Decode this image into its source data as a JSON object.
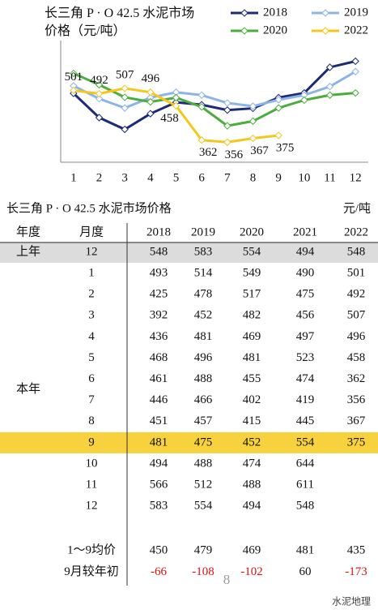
{
  "chart_data": {
    "type": "line",
    "title": "长三角 P · O 42.5 水泥市场价格（元/吨）",
    "categories": [
      "1",
      "2",
      "3",
      "4",
      "5",
      "6",
      "7",
      "8",
      "9",
      "10",
      "11",
      "12"
    ],
    "ylim": [
      300,
      600
    ],
    "series": [
      {
        "name": "2018",
        "color": "#1c2a78",
        "values": [
          493,
          425,
          392,
          436,
          468,
          461,
          446,
          451,
          481,
          494,
          566,
          583
        ]
      },
      {
        "name": "2019",
        "color": "#8db4e6",
        "values": [
          514,
          478,
          452,
          481,
          496,
          488,
          466,
          457,
          475,
          488,
          512,
          554
        ]
      },
      {
        "name": "2020",
        "color": "#4aad3c",
        "values": [
          549,
          517,
          482,
          469,
          481,
          455,
          402,
          415,
          452,
          474,
          488,
          494
        ]
      },
      {
        "name": "2022",
        "color": "#f5c61c",
        "values": [
          501,
          492,
          507,
          496,
          458,
          362,
          356,
          367,
          375,
          null,
          null,
          null
        ],
        "data_labels": true
      }
    ]
  },
  "table": {
    "title": "长三角 P · O 42.5 水泥市场价格",
    "unit": "元/吨",
    "header": [
      "年度",
      "月度",
      "2018",
      "2019",
      "2020",
      "2021",
      "2022"
    ],
    "sections": [
      {
        "label": "上年",
        "style": "#dcdcdc",
        "rows": [
          [
            "12",
            "548",
            "583",
            "554",
            "494",
            "548"
          ]
        ]
      },
      {
        "label": "本年",
        "highlight_row": 8,
        "highlight_color": "#f7d23e",
        "rows": [
          [
            "1",
            "493",
            "514",
            "549",
            "490",
            "501"
          ],
          [
            "2",
            "425",
            "478",
            "517",
            "475",
            "492"
          ],
          [
            "3",
            "392",
            "452",
            "482",
            "456",
            "507"
          ],
          [
            "4",
            "436",
            "481",
            "469",
            "497",
            "496"
          ],
          [
            "5",
            "468",
            "496",
            "481",
            "523",
            "458"
          ],
          [
            "6",
            "461",
            "488",
            "455",
            "474",
            "362"
          ],
          [
            "7",
            "446",
            "466",
            "402",
            "419",
            "356"
          ],
          [
            "8",
            "451",
            "457",
            "415",
            "445",
            "367"
          ],
          [
            "9",
            "481",
            "475",
            "452",
            "554",
            "375"
          ],
          [
            "10",
            "494",
            "488",
            "474",
            "644"
          ],
          [
            "11",
            "566",
            "512",
            "488",
            "611"
          ],
          [
            "12",
            "583",
            "554",
            "494",
            "548"
          ]
        ]
      }
    ],
    "summary": [
      [
        "1～9均价",
        "450",
        "479",
        "469",
        "481",
        "435"
      ],
      [
        "9月较年初",
        "-66",
        "-108",
        "-102",
        "60",
        "-173"
      ]
    ],
    "negative_color": "#e01010"
  },
  "footer": {
    "page": "8",
    "watermark": "水泥地理"
  }
}
